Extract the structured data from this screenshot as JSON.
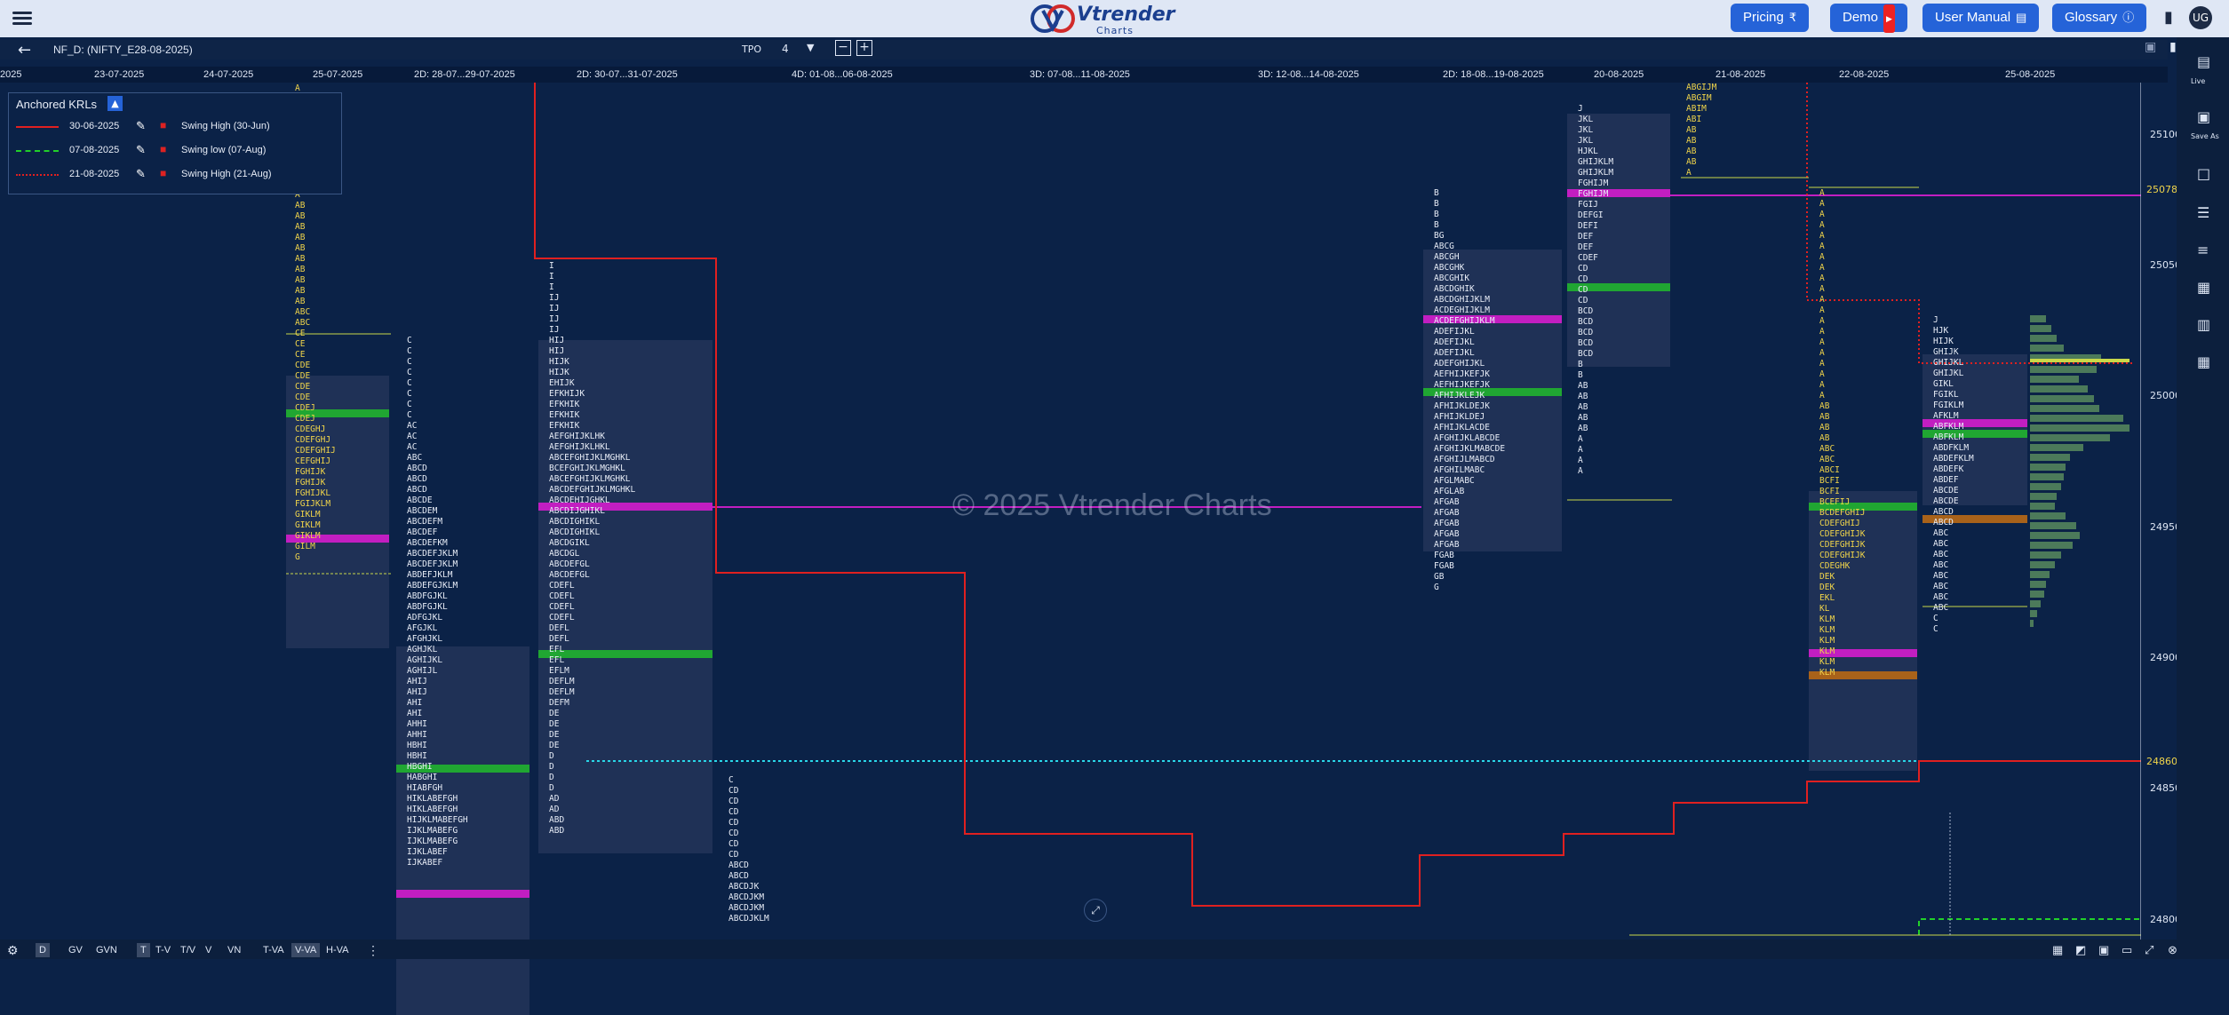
{
  "header": {
    "logo_brand": "Vtrender",
    "logo_sub": "Charts",
    "buttons": {
      "pricing": "Pricing",
      "demo": "Demo",
      "user_manual": "User Manual",
      "glossary": "Glossary"
    }
  },
  "toolbar": {
    "symbol": "NF_D: (NIFTY_E28-08-2025)",
    "tpo_label": "TPO",
    "tpo_value": "4"
  },
  "dates": [
    "2025",
    "23-07-2025",
    "24-07-2025",
    "25-07-2025",
    "2D: 28-07...29-07-2025",
    "2D: 30-07...31-07-2025",
    "4D: 01-08...06-08-2025",
    "3D: 07-08...11-08-2025",
    "3D: 12-08...14-08-2025",
    "2D: 18-08...19-08-2025",
    "20-08-2025",
    "21-08-2025",
    "22-08-2025",
    "25-08-2025"
  ],
  "yaxis": {
    "labels": [
      "25100",
      "25050",
      "25000",
      "24950",
      "24900",
      "24850",
      "24800"
    ],
    "highlight_upper": "25078.50",
    "highlight_lower": "24860.00"
  },
  "legend": {
    "title": "Anchored KRLs",
    "items": [
      {
        "date": "30-06-2025",
        "name": "Swing High (30-Jun)",
        "color": "#e02020"
      },
      {
        "date": "07-08-2025",
        "name": "Swing low (07-Aug)",
        "color": "#22d02a"
      },
      {
        "date": "21-08-2025",
        "name": "Swing High (21-Aug)",
        "color": "#e02020"
      }
    ]
  },
  "watermark": "© 2025 Vtrender Charts",
  "bottombar": {
    "items": [
      "D",
      "GV",
      "GVN",
      "T",
      "T-V",
      "T/V",
      "V",
      "VN",
      "T-VA",
      "V-VA",
      "H-VA"
    ]
  },
  "rightbar": {
    "live": "Live",
    "save_as": "Save As"
  },
  "profiles": {
    "p1": "A\nA\nA\nA\nA\nA\nA\nA\nA\nA\nA\nAB\nAB\nAB\nAB\nAB\nAB\nAB\nAB\nAB\nAB\nABC\nABC\nCE\nCE\nCE\nCDE\nCDE\nCDE\nCDE\nCDEJ\nCDEJ\nCDEGHJ\nCDEFGHJ\nCDEFGHIJ\nCEFGHIJ\nFGHIJK\nFGHIJK\nFGHIJKL\nFGIJKLM\nGIKLM\nGIKLM\nGIKLM\nGILM\nG",
    "p2": "C\nC\nC\nC\nC\nC\nC\nC\nAC\nAC\nAC\nABC\nABCD\nABCD\nABCD\nABCDE\nABCDEM\nABCDEFM\nABCDEF\nABCDEFKM\nABCDEFJKLM\nABCDEFJKLM\nABDEFJKLM\nABDEFGJKLM\nABDFGJKL\nABDFGJKL\nADFGJKL\nAFGJKL\nAFGHJKL\nAGHJKL\nAGHIJKL\nAGHIJL\nAHIJ\nAHIJ\nAHI\nAHI\nAHHI\nAHHI\nHBHI\nHBHI\nHBGHI\nHABGHI\nHIABFGH\nHIKLABEFGH\nHIKLABEFGH\nHIJKLMABEFGH\nIJKLMABEFG\nIJKLMABEFG\nIJKLABEF\nIJKABEF",
    "p3": "I\nI\nI\nIJ\nIJ\nIJ\nIJ\nHIJ\nHIJ\nHIJK\nHIJK\nEHIJK\nEFKHIJK\nEFKHIK\nEFKHIK\nEFKHIK\nAEFGHIJKLHK\nAEFGHIJKLHKL\nABCEFGHIJKLMGHKL\nBCEFGHIJKLMGHKL\nABCEFGHIJKLMGHKL\nABCDEFGHIJKLMGHKL\nABCDEHIJGHKL\nABCDIJGHIKL\nABCDIGHIKL\nABCDIGHIKL\nABCDGIKL\nABCDGL\nABCDEFGL\nABCDEFGL\nCDEFL\nCDEFL\nCDEFL\nCDEFL\nDEFL\nDEFL\nEFL\nEFL\nEFLM\nDEFLM\nDEFLM\nDEFM\nDE\nDE\nDE\nDE\nD\nD\nD\nD\nAD\nAD\nABD\nABD",
    "p4": "C\nCD\nCD\nCD\nCD\nCD\nCD\nCD\nABCD\nABCD\nABCDJK\nABCDJKM\nABCDJKM\nABCDJKLM",
    "p5": "B\nB\nB\nB\nBG\nABCG\nABCGH\nABCGHK\nABCGHIK\nABCDGHIK\nABCDGHIJKLM\nACDEGHIJKLM\nACDEFGHIJKLM\nADEFIJKL\nADEFIJKL\nADEFIJKL\nADEFGHIJKL\nAEFHIJKEFJK\nAEFHIJKEFJK\nAFHIJKLEJK\nAFHIJKLDEJK\nAFHIJKLDEJ\nAFHIJKLACDE\nAFGHIJKLABCDE\nAFGHIJKLMABCDE\nAFGHIJLMABCD\nAFGHILMABC\nAFGLMABC\nAFGLAB\nAFGAB\nAFGAB\nAFGAB\nAFGAB\nAFGAB\nFGAB\nFGAB\nGB\nG",
    "p6": "J\nJKL\nJKL\nJKL\nHJKL\nGHIJKLM\nGHIJKLM\nFGHIJM\nFGHIJM\nFGIJ\nDEFGI\nDEFI\nDEF\nDEF\nCDEF\nCD\nCD\nCD\nCD\nBCD\nBCD\nBCD\nBCD\nBCD\nB\nB\nAB\nAB\nAB\nAB\nAB\nA\nA\nA\nA",
    "p7": "ABGIJM\nABGIM\nABIM\nABI\nAB\nAB\nAB\nAB\nA",
    "p8": "A\nA\nA\nA\nA\nA\nA\nA\nA\nA\nA\nA\nA\nA\nA\nA\nA\nA\nA\nA\nAB\nAB\nAB\nAB\nABC\nABC\nABCI\nBCFI\nBCFI\nBCEFIJ\nBCDEFGHIJ\nCDEFGHIJ\nCDEFGHIJK\nCDEFGHIJK\nCDEFGHIJK\nCDEGHK\nDEK\nDEK\nEKL\nKL\nKLM\nKLM\nKLM\nKLM\nKLM\nKLM",
    "p9": "J\nHJK\nHIJK\nGHIJK\nGHIJKL\nGHIJKL\nGIKL\nFGIKL\nFGIKLM\nAFKLM\nABFKLM\nABFKLM\nABDFKLM\nABDEFKLM\nABDEFK\nABDEF\nABCDE\nABCDE\nABCD\nABCD\nABC\nABC\nABC\nABC\nABC\nABC\nABC\nABC\nC\nC"
  }
}
